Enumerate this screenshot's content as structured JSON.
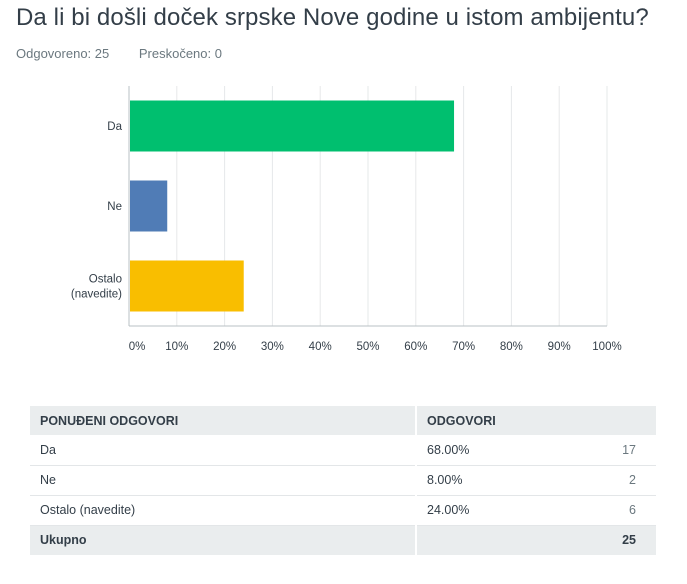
{
  "question": {
    "title": "Da li bi došli doček srpske Nove godine u istom ambijentu?",
    "answered_label": "Odgovoreno: 25",
    "skipped_label": "Preskočeno: 0"
  },
  "chart_data": {
    "type": "bar",
    "orientation": "horizontal",
    "categories": [
      "Da",
      "Ne",
      "Ostalo (navedite)"
    ],
    "category_lines": [
      [
        "Da"
      ],
      [
        "Ne"
      ],
      [
        "Ostalo",
        "(navedite)"
      ]
    ],
    "values": [
      68,
      8,
      24
    ],
    "colors": [
      "#00bf6f",
      "#507cb6",
      "#f9be00"
    ],
    "xlim": [
      0,
      100
    ],
    "x_ticks": [
      "0%",
      "10%",
      "20%",
      "30%",
      "40%",
      "50%",
      "60%",
      "70%",
      "80%",
      "90%",
      "100%"
    ],
    "grid": true,
    "title": "",
    "xlabel": "",
    "ylabel": ""
  },
  "table": {
    "headers": {
      "option": "PONUĐENI ODGOVORI",
      "responses": "ODGOVORI"
    },
    "rows": [
      {
        "label": "Da",
        "percent": "68.00%",
        "count": "17"
      },
      {
        "label": "Ne",
        "percent": "8.00%",
        "count": "2"
      },
      {
        "label": "Ostalo (navedite)",
        "percent": "24.00%",
        "count": "6"
      }
    ],
    "total": {
      "label": "Ukupno",
      "count": "25"
    }
  }
}
